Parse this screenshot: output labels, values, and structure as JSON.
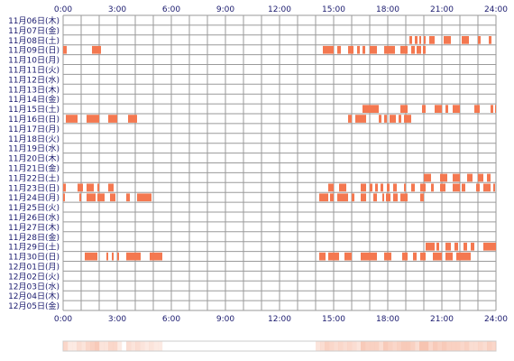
{
  "chart_data": {
    "type": "heatmap",
    "title": "",
    "xlabel": "",
    "ylabel": "",
    "x_range_hours": [
      0,
      24
    ],
    "x_ticks": [
      "0:00",
      "3:00",
      "6:00",
      "9:00",
      "12:00",
      "15:00",
      "18:00",
      "21:00",
      "24:00"
    ],
    "rows": [
      "11月06日(木)",
      "11月07日(金)",
      "11月08日(土)",
      "11月09日(日)",
      "11月10日(月)",
      "11月11日(火)",
      "11月12日(水)",
      "11月13日(木)",
      "11月14日(金)",
      "11月15日(土)",
      "11月16日(日)",
      "11月17日(月)",
      "11月18日(火)",
      "11月19日(水)",
      "11月20日(木)",
      "11月21日(金)",
      "11月22日(土)",
      "11月23日(日)",
      "11月24日(月)",
      "11月25日(火)",
      "11月26日(水)",
      "11月27日(木)",
      "11月28日(金)",
      "11月29日(土)",
      "11月30日(日)",
      "12月01日(月)",
      "12月02日(火)",
      "12月03日(水)",
      "12月04日(木)",
      "12月05日(金)"
    ],
    "activity": [
      [],
      [],
      [
        [
          19.2,
          19.35
        ],
        [
          19.5,
          19.65
        ],
        [
          19.75,
          19.85
        ],
        [
          20.0,
          20.1
        ],
        [
          20.3,
          20.6
        ],
        [
          21.1,
          21.5
        ],
        [
          22.1,
          22.5
        ],
        [
          23.0,
          23.15
        ],
        [
          23.6,
          23.75
        ]
      ],
      [
        [
          0.0,
          0.2
        ],
        [
          1.6,
          2.1
        ],
        [
          14.4,
          15.0
        ],
        [
          15.2,
          15.4
        ],
        [
          15.8,
          16.1
        ],
        [
          16.3,
          16.45
        ],
        [
          16.6,
          16.75
        ],
        [
          17.0,
          17.4
        ],
        [
          17.8,
          18.4
        ],
        [
          18.7,
          19.1
        ],
        [
          19.3,
          19.5
        ],
        [
          19.6,
          19.85
        ],
        [
          19.95,
          20.1
        ]
      ],
      [],
      [],
      [],
      [],
      [],
      [
        [
          16.6,
          17.5
        ],
        [
          18.7,
          19.1
        ],
        [
          19.9,
          20.1
        ],
        [
          20.6,
          21.0
        ],
        [
          21.2,
          21.35
        ],
        [
          21.6,
          22.0
        ],
        [
          22.8,
          23.1
        ],
        [
          23.7,
          23.85
        ],
        [
          23.95,
          24.0
        ]
      ],
      [
        [
          0.15,
          0.8
        ],
        [
          1.3,
          2.0
        ],
        [
          2.5,
          3.0
        ],
        [
          3.6,
          4.1
        ],
        [
          15.8,
          16.0
        ],
        [
          16.2,
          16.8
        ],
        [
          17.5,
          17.65
        ],
        [
          17.8,
          17.95
        ],
        [
          18.1,
          18.45
        ],
        [
          18.6,
          18.75
        ],
        [
          18.9,
          19.3
        ]
      ],
      [],
      [],
      [],
      [],
      [],
      [
        [
          20.0,
          20.4
        ],
        [
          20.9,
          21.3
        ],
        [
          21.6,
          22.0
        ],
        [
          22.4,
          22.7
        ],
        [
          23.0,
          23.3
        ],
        [
          23.5,
          23.7
        ]
      ],
      [
        [
          0.0,
          0.15
        ],
        [
          0.8,
          1.1
        ],
        [
          1.3,
          1.7
        ],
        [
          1.9,
          2.0
        ],
        [
          2.5,
          2.8
        ],
        [
          14.7,
          15.0
        ],
        [
          15.3,
          15.7
        ],
        [
          16.5,
          16.8
        ],
        [
          17.0,
          17.15
        ],
        [
          17.3,
          17.45
        ],
        [
          17.6,
          17.75
        ],
        [
          17.95,
          18.1
        ],
        [
          18.3,
          18.5
        ],
        [
          18.9,
          19.0
        ],
        [
          19.3,
          19.5
        ],
        [
          19.8,
          20.1
        ],
        [
          20.4,
          20.55
        ],
        [
          20.9,
          21.2
        ],
        [
          21.6,
          22.0
        ],
        [
          22.1,
          22.3
        ],
        [
          22.9,
          23.1
        ],
        [
          23.3,
          23.7
        ],
        [
          23.85,
          23.95
        ]
      ],
      [
        [
          0.0,
          0.1
        ],
        [
          0.9,
          1.0
        ],
        [
          1.3,
          1.8
        ],
        [
          1.9,
          2.3
        ],
        [
          2.6,
          2.9
        ],
        [
          3.5,
          3.7
        ],
        [
          4.1,
          4.9
        ],
        [
          14.2,
          14.7
        ],
        [
          14.8,
          15.0
        ],
        [
          15.2,
          15.8
        ],
        [
          16.0,
          16.15
        ],
        [
          16.5,
          16.8
        ],
        [
          17.2,
          17.4
        ],
        [
          17.7,
          17.8
        ],
        [
          17.9,
          18.15
        ],
        [
          18.3,
          18.55
        ],
        [
          18.7,
          19.1
        ],
        [
          19.8,
          20.0
        ]
      ],
      [],
      [],
      [],
      [],
      [
        [
          20.1,
          20.6
        ],
        [
          20.7,
          20.85
        ],
        [
          21.2,
          21.5
        ],
        [
          21.7,
          21.9
        ],
        [
          22.2,
          22.4
        ],
        [
          22.6,
          22.8
        ],
        [
          23.3,
          24.0
        ]
      ],
      [
        [
          1.2,
          1.9
        ],
        [
          2.4,
          2.5
        ],
        [
          2.7,
          2.8
        ],
        [
          3.0,
          3.1
        ],
        [
          3.5,
          4.3
        ],
        [
          4.8,
          5.5
        ],
        [
          14.2,
          14.55
        ],
        [
          14.7,
          15.3
        ],
        [
          15.6,
          16.0
        ],
        [
          16.5,
          17.4
        ],
        [
          17.8,
          18.2
        ],
        [
          18.8,
          19.1
        ],
        [
          19.4,
          19.6
        ],
        [
          19.8,
          20.1
        ],
        [
          20.5,
          21.0
        ],
        [
          21.2,
          21.6
        ],
        [
          21.8,
          22.6
        ]
      ],
      [],
      [],
      [],
      [],
      []
    ],
    "colors": {
      "activity": "#f47850",
      "grid": "#9a9a9a",
      "axis_text": "#1a1a6e",
      "summary_bar_bg": "#fde9e1",
      "summary_bar_dark": "#f7c4b1"
    }
  }
}
